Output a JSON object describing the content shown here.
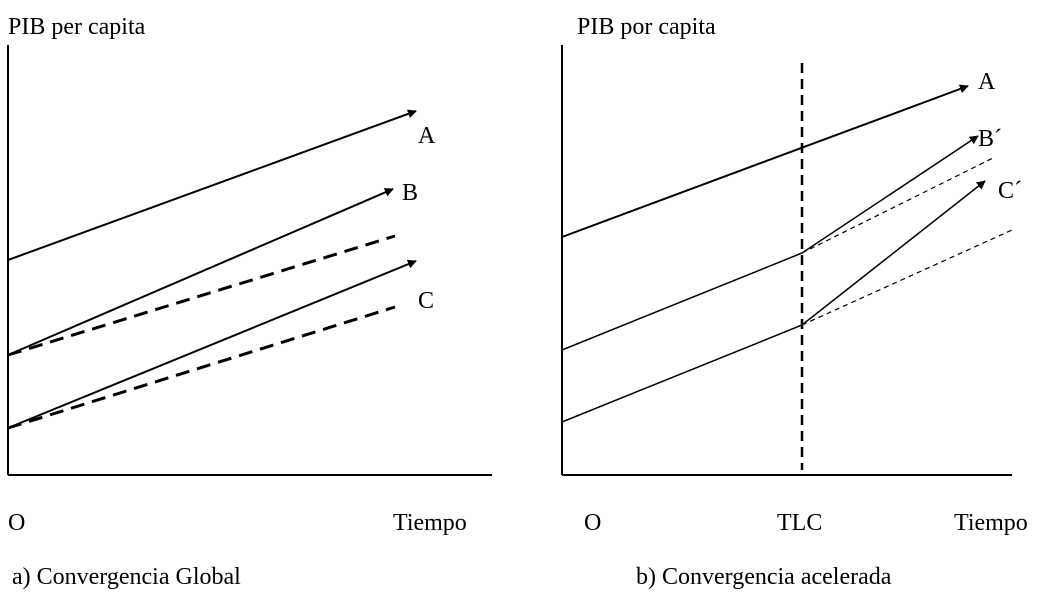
{
  "left": {
    "y_axis_label": "PIB per capita",
    "lines": [
      "A",
      "B",
      "C"
    ],
    "origin": "O",
    "x_axis_label": "Tiempo",
    "caption": "a) Convergencia Global"
  },
  "right": {
    "y_axis_label": "PIB por capita",
    "lines": [
      "A",
      "B´",
      "C´"
    ],
    "origin": "O",
    "event": "TLC",
    "x_axis_label": "Tiempo",
    "caption": "b) Convergencia acelerada"
  }
}
